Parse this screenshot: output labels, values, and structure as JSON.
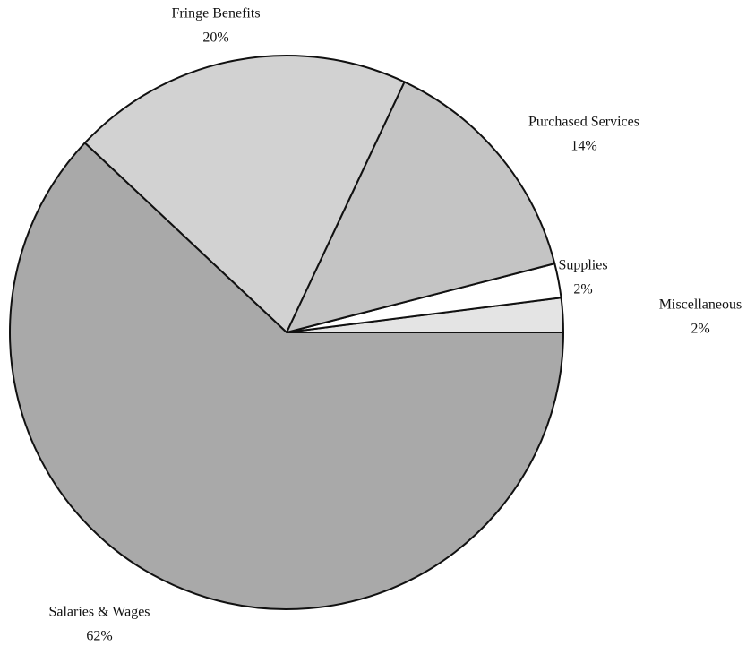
{
  "chart_data": {
    "type": "pie",
    "categories": [
      "Miscellaneous",
      "Supplies",
      "Purchased Services",
      "Fringe Benefits",
      "Salaries & Wages"
    ],
    "values": [
      2,
      2,
      14,
      20,
      62
    ],
    "value_labels": [
      "2%",
      "2%",
      "14%",
      "20%",
      "62%"
    ],
    "colors": [
      "#e4e4e4",
      "#ffffff",
      "#c4c4c4",
      "#d2d2d2",
      "#a9a9a9"
    ]
  }
}
